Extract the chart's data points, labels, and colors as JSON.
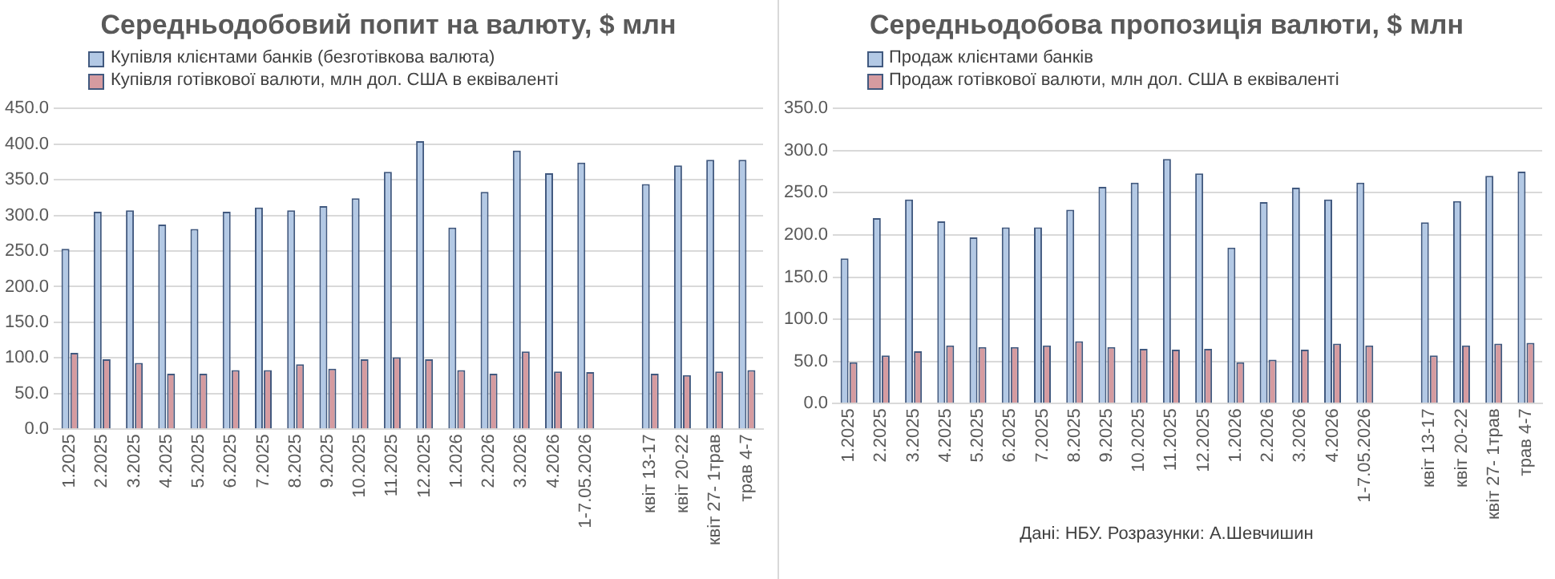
{
  "chart_data": [
    {
      "type": "bar",
      "title": "Середньодобовий попит на валюту, $ млн",
      "categories": [
        "1.2025",
        "2.2025",
        "3.2025",
        "4.2025",
        "5.2025",
        "6.2025",
        "7.2025",
        "8.2025",
        "9.2025",
        "10.2025",
        "11.2025",
        "12.2025",
        "1.2026",
        "2.2026",
        "3.2026",
        "4.2026",
        "1-7.05.2026",
        null,
        "квіт 13-17",
        "квіт 20-22",
        "квіт 27- 1трав",
        "трав 4-7"
      ],
      "series": [
        {
          "name": "Купівля клієнтами банків (безготівкова валюта)",
          "color": "#b3c9e5",
          "values": [
            253,
            305,
            307,
            287,
            281,
            305,
            311,
            307,
            313,
            324,
            361,
            404,
            283,
            333,
            391,
            359,
            374,
            null,
            344,
            370,
            378,
            378
          ]
        },
        {
          "name": "Купівля готівкової валюти, млн дол. США в еквіваленті",
          "color": "#d59ba0",
          "values": [
            107,
            98,
            93,
            78,
            78,
            83,
            83,
            91,
            85,
            98,
            101,
            98,
            83,
            78,
            109,
            81,
            80,
            null,
            78,
            76,
            81,
            83
          ]
        }
      ],
      "ylim": [
        0,
        450
      ],
      "yticks": [
        {
          "value": 0,
          "label": "0.0"
        },
        {
          "value": 50,
          "label": "50.0"
        },
        {
          "value": 100,
          "label": "100.0"
        },
        {
          "value": 150,
          "label": "150.0"
        },
        {
          "value": 200,
          "label": "200.0"
        },
        {
          "value": 250,
          "label": "250.0"
        },
        {
          "value": 300,
          "label": "300.0"
        },
        {
          "value": 350,
          "label": "350.0"
        },
        {
          "value": 400,
          "label": "400.0"
        },
        {
          "value": 450,
          "label": "450.0"
        }
      ],
      "grid": "y",
      "legend": "top left"
    },
    {
      "type": "bar",
      "title": "Середньодобова пропозиція валюти, $ млн",
      "categories": [
        "1.2025",
        "2.2025",
        "3.2025",
        "4.2025",
        "5.2025",
        "6.2025",
        "7.2025",
        "8.2025",
        "9.2025",
        "10.2025",
        "11.2025",
        "12.2025",
        "1.2026",
        "2.2026",
        "3.2026",
        "4.2026",
        "1-7.05.2026",
        null,
        "квіт 13-17",
        "квіт 20-22",
        "квіт 27- 1трав",
        "трав 4-7"
      ],
      "series": [
        {
          "name": "Продаж клієнтами банків",
          "color": "#b3c9e5",
          "values": [
            172,
            220,
            242,
            216,
            197,
            209,
            209,
            230,
            257,
            262,
            290,
            273,
            185,
            239,
            256,
            242,
            262,
            null,
            215,
            240,
            270,
            275
          ]
        },
        {
          "name": "Продаж готівкової валюти, млн дол. США в еквіваленті",
          "color": "#d59ba0",
          "values": [
            49,
            57,
            62,
            69,
            67,
            67,
            69,
            74,
            67,
            65,
            64,
            65,
            49,
            52,
            64,
            71,
            69,
            null,
            57,
            69,
            71,
            72
          ]
        }
      ],
      "ylim": [
        0,
        350
      ],
      "yticks": [
        {
          "value": 0,
          "label": "0.0"
        },
        {
          "value": 50,
          "label": "50.0"
        },
        {
          "value": 100,
          "label": "100.0"
        },
        {
          "value": 150,
          "label": "150.0"
        },
        {
          "value": 200,
          "label": "200.0"
        },
        {
          "value": 250,
          "label": "250.0"
        },
        {
          "value": 300,
          "label": "300.0"
        },
        {
          "value": 350,
          "label": "350.0"
        }
      ],
      "grid": "y",
      "legend": "top left",
      "annotations": [
        "Дані: НБУ. Розразунки: А.Шевчишин"
      ]
    }
  ]
}
